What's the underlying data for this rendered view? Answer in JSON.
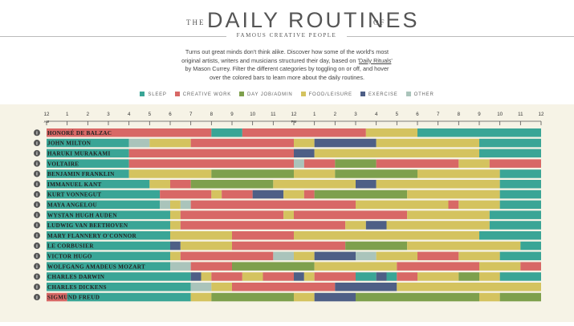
{
  "header": {
    "the": "THE",
    "title": "DAILY ROUTINES",
    "of": "OF",
    "subtitle": "FAMOUS CREATIVE PEOPLE",
    "intro_before": "Turns out great minds don't think alike. Discover how some of the world's most original artists, writers and musicians structured their day, based on '",
    "intro_link": "Daily Rituals",
    "intro_after": "' by Mason Currey. Filter the different categories by toggling on or off, and hover over the colored bars to learn more about the daily routines."
  },
  "legend": [
    {
      "key": "sleep",
      "label": "SLEEP",
      "color": "#3aa596"
    },
    {
      "key": "creative",
      "label": "CREATIVE WORK",
      "color": "#d86866"
    },
    {
      "key": "dayjob",
      "label": "DAY JOB/ADMIN",
      "color": "#7ea04d"
    },
    {
      "key": "food",
      "label": "FOOD/LEISURE",
      "color": "#d4c35f"
    },
    {
      "key": "exercise",
      "label": "EXERCISE",
      "color": "#4e5f86"
    },
    {
      "key": "other",
      "label": "OTHER",
      "color": "#aac4bb"
    }
  ],
  "chart_data": {
    "type": "bar",
    "orientation": "horizontal-timeline",
    "x_range": [
      0,
      24
    ],
    "x_ticks": [
      "12",
      "1",
      "2",
      "3",
      "4",
      "5",
      "6",
      "7",
      "8",
      "9",
      "10",
      "11",
      "12",
      "1",
      "2",
      "3",
      "4",
      "5",
      "6",
      "7",
      "8",
      "9",
      "10",
      "11",
      "12"
    ],
    "am_label": "AM",
    "pm_label": "PM",
    "info_icon": "i",
    "people": [
      {
        "name": "HONORÉ DE BALZAC",
        "segments": [
          [
            0,
            1,
            "creative"
          ],
          [
            1,
            8,
            "creative"
          ],
          [
            8,
            9.5,
            "sleep"
          ],
          [
            9.5,
            15.5,
            "creative"
          ],
          [
            15.5,
            18,
            "food"
          ],
          [
            18,
            24,
            "sleep"
          ]
        ]
      },
      {
        "name": "JOHN MILTON",
        "segments": [
          [
            0,
            4,
            "sleep"
          ],
          [
            4,
            5,
            "other"
          ],
          [
            5,
            7,
            "food"
          ],
          [
            7,
            12,
            "creative"
          ],
          [
            12,
            13,
            "food"
          ],
          [
            13,
            16,
            "exercise"
          ],
          [
            16,
            21,
            "food"
          ],
          [
            21,
            24,
            "sleep"
          ]
        ]
      },
      {
        "name": "HARUKI MURAKAMI",
        "segments": [
          [
            0,
            4,
            "sleep"
          ],
          [
            4,
            12,
            "creative"
          ],
          [
            12,
            13,
            "exercise"
          ],
          [
            13,
            21,
            "food"
          ],
          [
            21,
            24,
            "sleep"
          ]
        ]
      },
      {
        "name": "VOLTAIRE",
        "segments": [
          [
            0,
            4,
            "sleep"
          ],
          [
            4,
            12,
            "creative"
          ],
          [
            12,
            12.5,
            "other"
          ],
          [
            12.5,
            14,
            "creative"
          ],
          [
            14,
            16,
            "dayjob"
          ],
          [
            16,
            20,
            "creative"
          ],
          [
            20,
            21.5,
            "food"
          ],
          [
            21.5,
            24,
            "creative"
          ]
        ]
      },
      {
        "name": "BENJAMIN FRANKLIN",
        "segments": [
          [
            0,
            4,
            "sleep"
          ],
          [
            4,
            8,
            "food"
          ],
          [
            8,
            12,
            "dayjob"
          ],
          [
            12,
            14,
            "food"
          ],
          [
            14,
            18,
            "dayjob"
          ],
          [
            18,
            22,
            "food"
          ],
          [
            22,
            24,
            "sleep"
          ]
        ]
      },
      {
        "name": "IMMANUEL KANT",
        "segments": [
          [
            0,
            5,
            "sleep"
          ],
          [
            5,
            6,
            "food"
          ],
          [
            6,
            7,
            "creative"
          ],
          [
            7,
            11,
            "dayjob"
          ],
          [
            11,
            15,
            "food"
          ],
          [
            15,
            16,
            "exercise"
          ],
          [
            16,
            22,
            "food"
          ],
          [
            22,
            24,
            "sleep"
          ]
        ]
      },
      {
        "name": "KURT VONNEGUT",
        "segments": [
          [
            0,
            5.5,
            "sleep"
          ],
          [
            5.5,
            8,
            "creative"
          ],
          [
            8,
            8.5,
            "food"
          ],
          [
            8.5,
            10,
            "creative"
          ],
          [
            10,
            11.5,
            "exercise"
          ],
          [
            11.5,
            12.5,
            "food"
          ],
          [
            12.5,
            13,
            "creative"
          ],
          [
            13,
            17.5,
            "dayjob"
          ],
          [
            17.5,
            22,
            "food"
          ],
          [
            22,
            24,
            "sleep"
          ]
        ]
      },
      {
        "name": "MAYA ANGELOU",
        "segments": [
          [
            0,
            5.5,
            "sleep"
          ],
          [
            5.5,
            6,
            "other"
          ],
          [
            6,
            6.5,
            "food"
          ],
          [
            6.5,
            7,
            "other"
          ],
          [
            7,
            15,
            "creative"
          ],
          [
            15,
            19.5,
            "food"
          ],
          [
            19.5,
            20,
            "creative"
          ],
          [
            20,
            22,
            "food"
          ],
          [
            22,
            24,
            "sleep"
          ]
        ]
      },
      {
        "name": "WYSTAN HUGH AUDEN",
        "segments": [
          [
            0,
            6,
            "sleep"
          ],
          [
            6,
            6.5,
            "food"
          ],
          [
            6.5,
            11.5,
            "creative"
          ],
          [
            11.5,
            12,
            "food"
          ],
          [
            12,
            17.5,
            "creative"
          ],
          [
            17.5,
            21.5,
            "food"
          ],
          [
            21.5,
            24,
            "sleep"
          ]
        ]
      },
      {
        "name": "LUDWIG VAN BEETHOVEN",
        "segments": [
          [
            0,
            6,
            "sleep"
          ],
          [
            6,
            6.5,
            "food"
          ],
          [
            6.5,
            14.5,
            "creative"
          ],
          [
            14.5,
            15.5,
            "food"
          ],
          [
            15.5,
            16.5,
            "exercise"
          ],
          [
            16.5,
            21.5,
            "food"
          ],
          [
            21.5,
            24,
            "sleep"
          ]
        ]
      },
      {
        "name": "MARY FLANNERY O'CONNOR",
        "segments": [
          [
            0,
            6,
            "sleep"
          ],
          [
            6,
            9,
            "food"
          ],
          [
            9,
            12,
            "creative"
          ],
          [
            12,
            21,
            "food"
          ],
          [
            21,
            24,
            "sleep"
          ]
        ]
      },
      {
        "name": "LE CORBUSIER",
        "segments": [
          [
            0,
            6,
            "sleep"
          ],
          [
            6,
            6.5,
            "exercise"
          ],
          [
            6.5,
            9,
            "food"
          ],
          [
            9,
            14.5,
            "creative"
          ],
          [
            14.5,
            17.5,
            "dayjob"
          ],
          [
            17.5,
            23,
            "food"
          ],
          [
            23,
            24,
            "sleep"
          ]
        ]
      },
      {
        "name": "VICTOR HUGO",
        "segments": [
          [
            0,
            6,
            "sleep"
          ],
          [
            6,
            6.5,
            "food"
          ],
          [
            6.5,
            11,
            "creative"
          ],
          [
            11,
            12,
            "other"
          ],
          [
            12,
            13,
            "food"
          ],
          [
            13,
            15,
            "exercise"
          ],
          [
            15,
            16,
            "other"
          ],
          [
            16,
            18,
            "food"
          ],
          [
            18,
            20,
            "creative"
          ],
          [
            20,
            22,
            "food"
          ],
          [
            22,
            24,
            "sleep"
          ]
        ]
      },
      {
        "name": "WOLFGANG AMADEUS MOZART",
        "segments": [
          [
            0,
            6,
            "sleep"
          ],
          [
            6,
            7,
            "other"
          ],
          [
            7,
            9,
            "creative"
          ],
          [
            9,
            13,
            "dayjob"
          ],
          [
            13,
            17,
            "food"
          ],
          [
            17,
            21,
            "creative"
          ],
          [
            21,
            23,
            "food"
          ],
          [
            23,
            24,
            "creative"
          ]
        ]
      },
      {
        "name": "CHARLES DARWIN",
        "segments": [
          [
            0,
            7,
            "sleep"
          ],
          [
            7,
            7.5,
            "exercise"
          ],
          [
            7.5,
            8,
            "food"
          ],
          [
            8,
            9.5,
            "creative"
          ],
          [
            9.5,
            10.5,
            "food"
          ],
          [
            10.5,
            12,
            "creative"
          ],
          [
            12,
            12.5,
            "exercise"
          ],
          [
            12.5,
            13,
            "food"
          ],
          [
            13,
            15,
            "creative"
          ],
          [
            15,
            16,
            "sleep"
          ],
          [
            16,
            16.5,
            "exercise"
          ],
          [
            16.5,
            17,
            "sleep"
          ],
          [
            17,
            18,
            "creative"
          ],
          [
            18,
            20,
            "food"
          ],
          [
            20,
            21,
            "dayjob"
          ],
          [
            21,
            22,
            "food"
          ],
          [
            22,
            24,
            "sleep"
          ]
        ]
      },
      {
        "name": "CHARLES DICKENS",
        "segments": [
          [
            0,
            7,
            "sleep"
          ],
          [
            7,
            8,
            "other"
          ],
          [
            8,
            9,
            "food"
          ],
          [
            9,
            14,
            "creative"
          ],
          [
            14,
            17,
            "exercise"
          ],
          [
            17,
            24,
            "food"
          ]
        ]
      },
      {
        "name": "SIGMUND FREUD",
        "segments": [
          [
            0,
            1,
            "creative"
          ],
          [
            1,
            7,
            "sleep"
          ],
          [
            7,
            8,
            "food"
          ],
          [
            8,
            12,
            "dayjob"
          ],
          [
            12,
            13,
            "food"
          ],
          [
            13,
            15,
            "exercise"
          ],
          [
            15,
            21,
            "dayjob"
          ],
          [
            21,
            22,
            "food"
          ],
          [
            22,
            24,
            "dayjob"
          ]
        ]
      }
    ]
  }
}
